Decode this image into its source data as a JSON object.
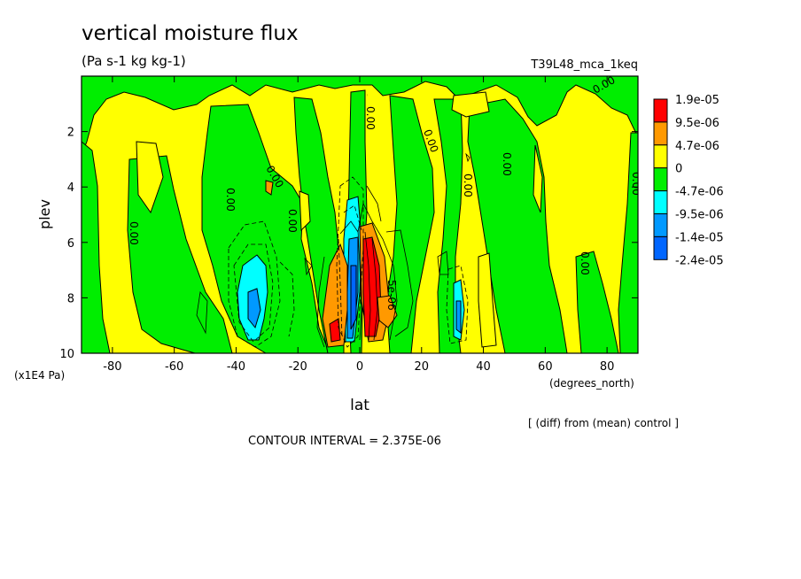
{
  "chart_data": {
    "type": "heatmap",
    "title": "vertical moisture flux",
    "units": "(Pa s-1 kg kg-1)",
    "experiment": "T39L48_mca_1keq",
    "xlabel": "lat",
    "xunits": "(degrees_north)",
    "ylabel": "plev",
    "yunits": "(x1E4 Pa)",
    "xlim": [
      -90,
      90
    ],
    "ylim": [
      0,
      10
    ],
    "y_inverted": true,
    "x_ticks": [
      "-80",
      "-60",
      "-40",
      "-20",
      "0",
      "20",
      "40",
      "60",
      "80"
    ],
    "x_tick_values": [
      -80,
      -60,
      -40,
      -20,
      0,
      20,
      40,
      60,
      80
    ],
    "y_ticks": [
      "2",
      "4",
      "6",
      "8",
      "10"
    ],
    "y_tick_values": [
      2,
      4,
      6,
      8,
      10
    ],
    "colorbar": {
      "levels": [
        "1.9e-05",
        "9.5e-06",
        "4.7e-06",
        "0",
        "-4.7e-06",
        "-9.5e-06",
        "-1.4e-05",
        "-2.4e-05"
      ],
      "colors": [
        "#ff0000",
        "#ff9900",
        "#ffff00",
        "#00ee00",
        "#00ffff",
        "#0099ff",
        "#0066ff"
      ]
    },
    "contour_labels": [
      "0.00",
      "0.00",
      "0.00",
      "0.00",
      "0.00",
      "0.00",
      "0.00",
      "0.00",
      "0.00",
      "0.00",
      "0.00",
      "0.00",
      "5e-06"
    ],
    "note": "[ (diff) from (mean) control ]",
    "contour_interval": "CONTOUR INTERVAL = 2.375E-06"
  }
}
